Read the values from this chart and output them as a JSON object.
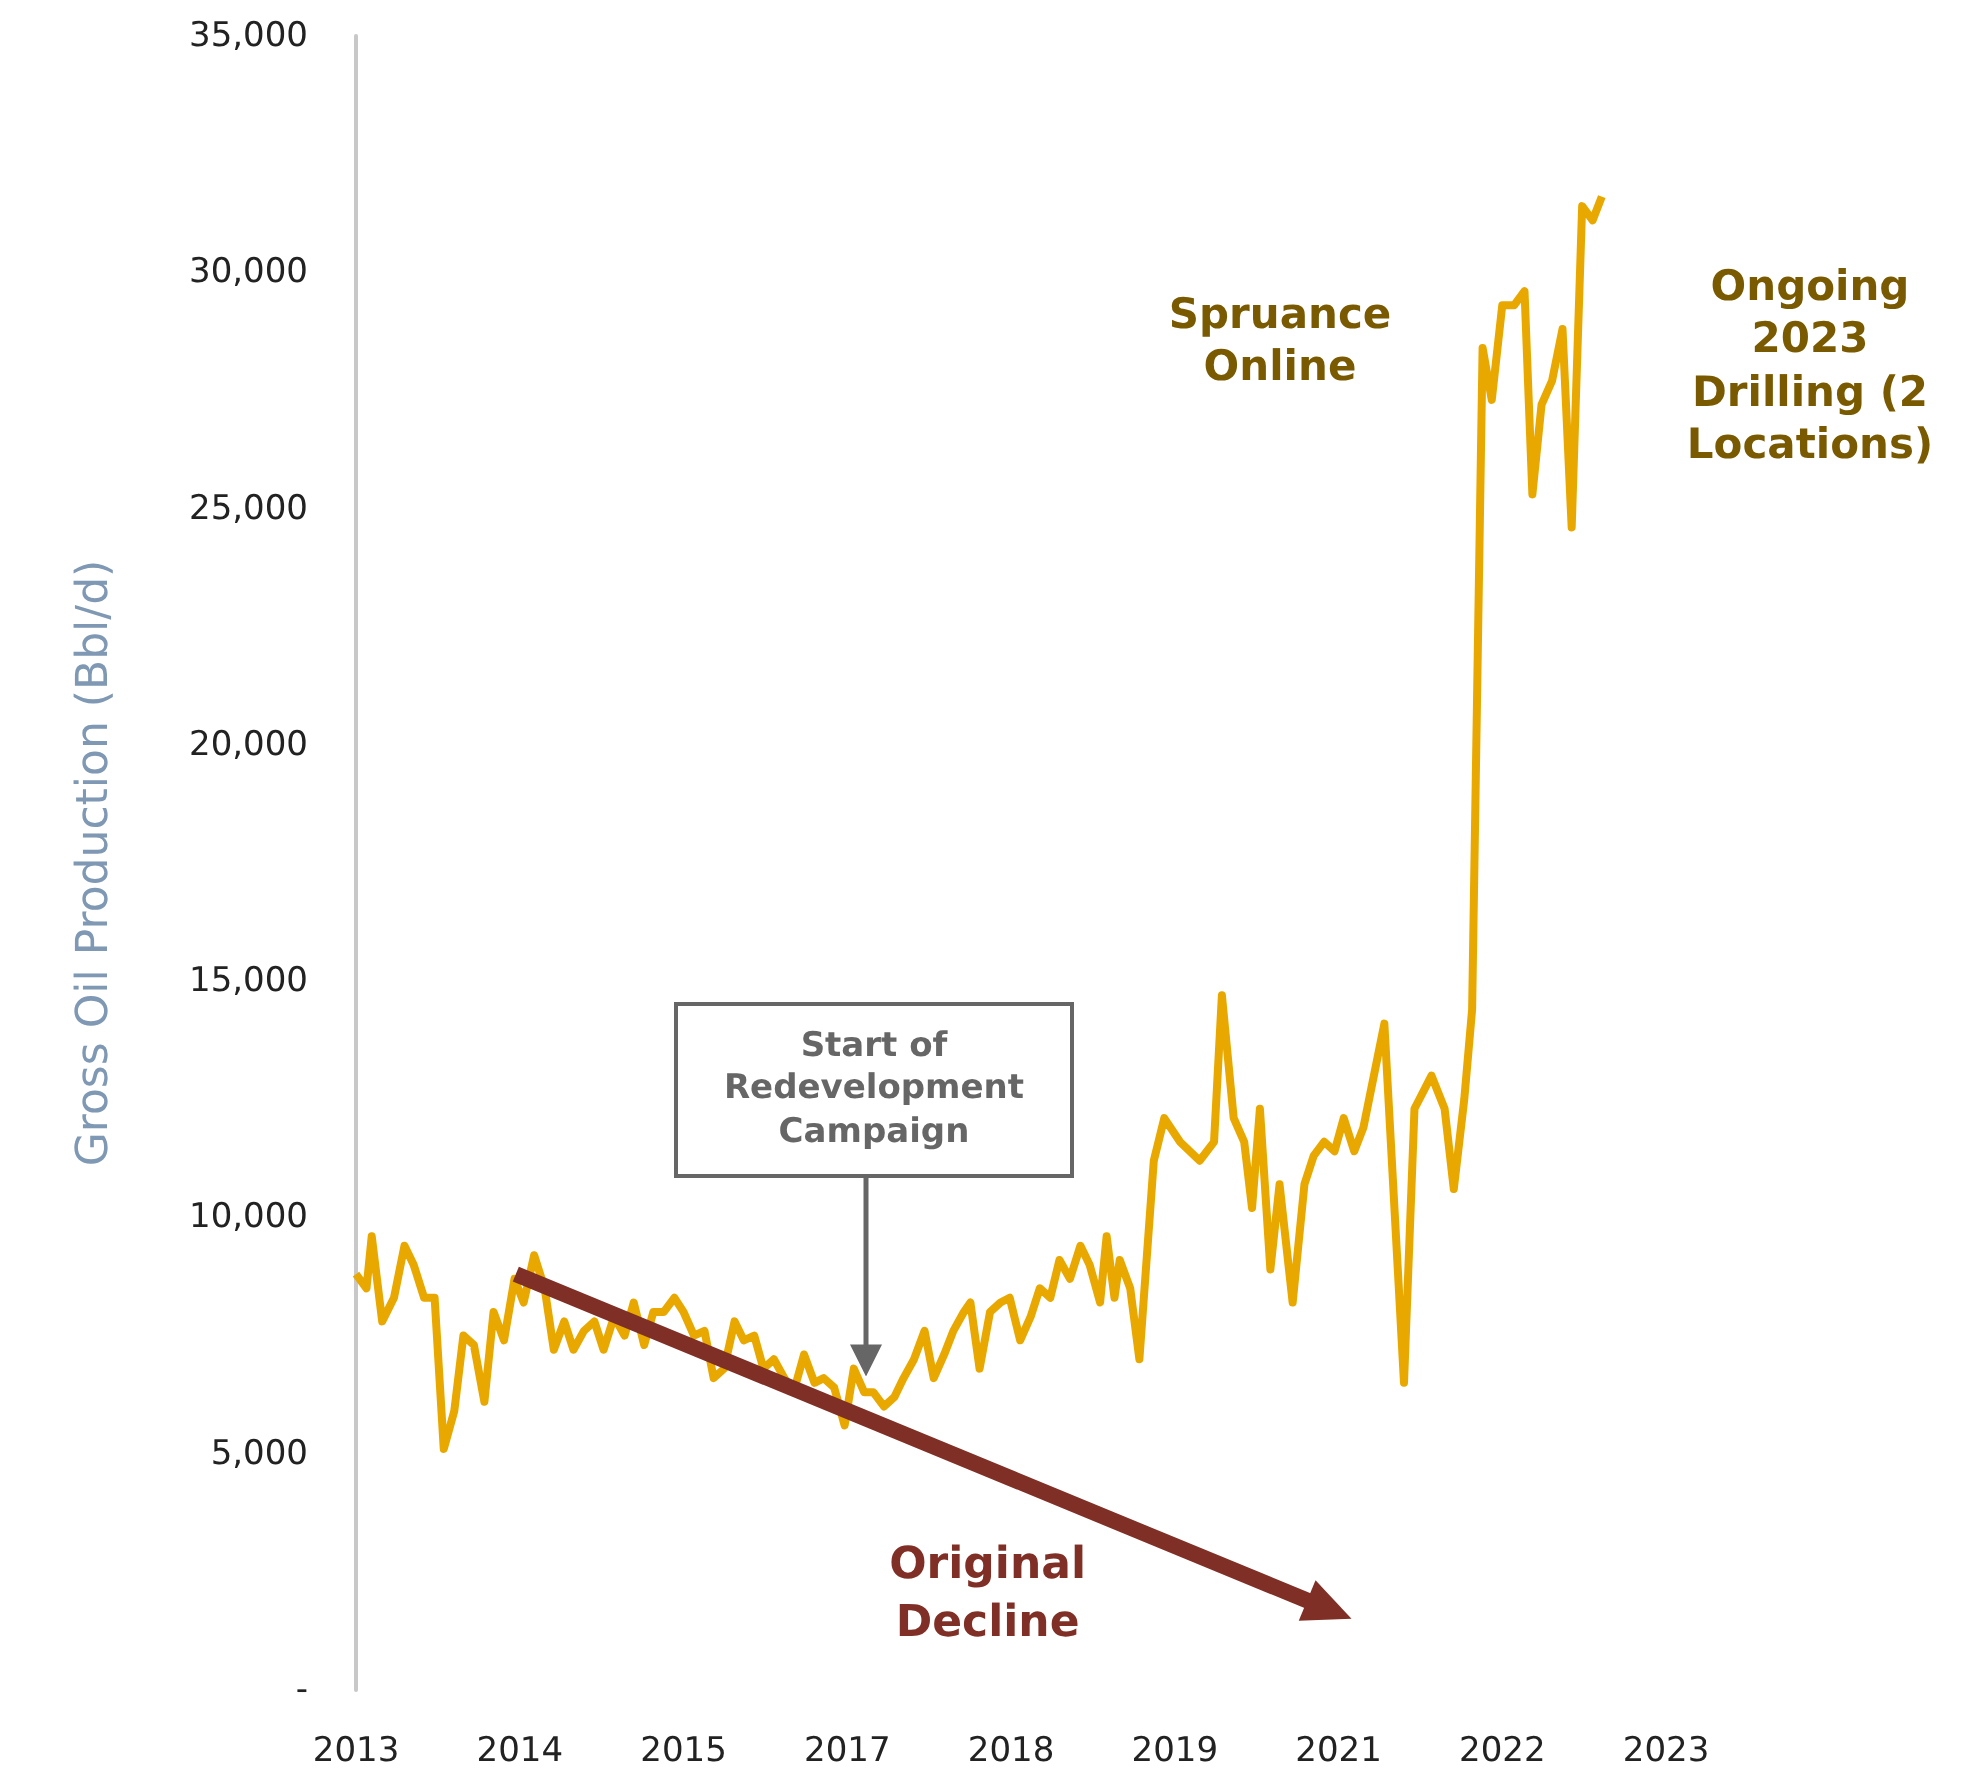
{
  "chart_data": {
    "type": "line",
    "ylabel": "Gross Oil Production (Bbl/d)",
    "xlim": [
      2013,
      2023
    ],
    "xticks": [
      {
        "value": 2013,
        "label": "2013"
      },
      {
        "value": 2014.25,
        "label": "2014"
      },
      {
        "value": 2015.5,
        "label": "2015"
      },
      {
        "value": 2016.75,
        "label": "2017"
      },
      {
        "value": 2018,
        "label": "2018"
      },
      {
        "value": 2019.25,
        "label": "2019"
      },
      {
        "value": 2020.5,
        "label": "2021"
      },
      {
        "value": 2021.75,
        "label": "2022"
      },
      {
        "value": 2023,
        "label": "2023"
      }
    ],
    "ylim": [
      0,
      35000
    ],
    "yticks": [
      {
        "value": 0,
        "label": "-"
      },
      {
        "value": 5000,
        "label": "5,000"
      },
      {
        "value": 10000,
        "label": "10,000"
      },
      {
        "value": 15000,
        "label": "15,000"
      },
      {
        "value": 20000,
        "label": "20,000"
      },
      {
        "value": 25000,
        "label": "25,000"
      },
      {
        "value": 30000,
        "label": "30,000"
      },
      {
        "value": 35000,
        "label": "35,000"
      }
    ],
    "grid": false,
    "legend": false,
    "marker": "none",
    "line_style": "solid",
    "series": [
      {
        "color": "#e8a800",
        "x": [
          2013.0,
          2013.08,
          2013.12,
          2013.2,
          2013.29,
          2013.37,
          2013.44,
          2013.52,
          2013.6,
          2013.67,
          2013.75,
          2013.82,
          2013.9,
          2013.98,
          2014.05,
          2014.13,
          2014.21,
          2014.28,
          2014.36,
          2014.44,
          2014.51,
          2014.59,
          2014.66,
          2014.74,
          2014.82,
          2014.89,
          2014.97,
          2015.05,
          2015.12,
          2015.2,
          2015.27,
          2015.35,
          2015.43,
          2015.5,
          2015.58,
          2015.66,
          2015.73,
          2015.81,
          2015.89,
          2015.96,
          2016.04,
          2016.11,
          2016.19,
          2016.27,
          2016.34,
          2016.42,
          2016.5,
          2016.57,
          2016.65,
          2016.73,
          2016.8,
          2016.88,
          2016.95,
          2017.03,
          2017.11,
          2017.18,
          2017.26,
          2017.34,
          2017.41,
          2017.49,
          2017.56,
          2017.64,
          2017.69,
          2017.76,
          2017.84,
          2017.92,
          2017.99,
          2018.07,
          2018.15,
          2018.22,
          2018.3,
          2018.37,
          2018.45,
          2018.53,
          2018.6,
          2018.68,
          2018.73,
          2018.79,
          2018.83,
          2018.91,
          2018.98,
          2019.09,
          2019.17,
          2019.29,
          2019.44,
          2019.55,
          2019.61,
          2019.7,
          2019.78,
          2019.84,
          2019.9,
          2019.98,
          2020.05,
          2020.15,
          2020.24,
          2020.31,
          2020.39,
          2020.47,
          2020.54,
          2020.62,
          2020.69,
          2020.85,
          2021.0,
          2021.08,
          2021.21,
          2021.31,
          2021.38,
          2021.46,
          2021.52,
          2021.6,
          2021.67,
          2021.75,
          2021.84,
          2021.92,
          2021.98,
          2022.05,
          2022.13,
          2022.21,
          2022.28,
          2022.36,
          2022.44,
          2022.51
        ],
        "values": [
          8800,
          8500,
          9600,
          7800,
          8300,
          9400,
          9000,
          8300,
          8300,
          5100,
          5900,
          7500,
          7300,
          6100,
          8000,
          7400,
          8700,
          8200,
          9200,
          8500,
          7200,
          7800,
          7200,
          7600,
          7800,
          7200,
          7900,
          7500,
          8200,
          7300,
          8000,
          8000,
          8300,
          8000,
          7500,
          7600,
          6600,
          6800,
          7800,
          7400,
          7500,
          6800,
          7000,
          6600,
          6300,
          7100,
          6500,
          6600,
          6400,
          5600,
          6800,
          6300,
          6300,
          6000,
          6200,
          6600,
          7000,
          7600,
          6600,
          7100,
          7600,
          8000,
          8200,
          6800,
          8000,
          8200,
          8300,
          7400,
          7900,
          8500,
          8300,
          9100,
          8700,
          9400,
          9000,
          8200,
          9600,
          8300,
          9100,
          8500,
          7000,
          11200,
          12100,
          11600,
          11200,
          11600,
          14700,
          12100,
          11600,
          10200,
          12300,
          8900,
          10700,
          8200,
          10700,
          11300,
          11600,
          11400,
          12100,
          11400,
          11900,
          14100,
          6500,
          12300,
          13000,
          12300,
          10600,
          12500,
          14400,
          28400,
          27300,
          29300,
          29300,
          29600,
          25300,
          27200,
          27700,
          28800,
          24600,
          31400,
          31100,
          31600
        ]
      },
      {
        "name": "Original Decline",
        "marker": "triangle",
        "color": "#7f2f25",
        "x": [
          2014.22,
          2020.43
        ],
        "values": [
          8800,
          1700
        ]
      }
    ],
    "annotations": [
      "Spruance Online",
      "Ongoing 2023 Drilling (2 Locations)",
      "Start of Redevelopment Campaign"
    ]
  }
}
